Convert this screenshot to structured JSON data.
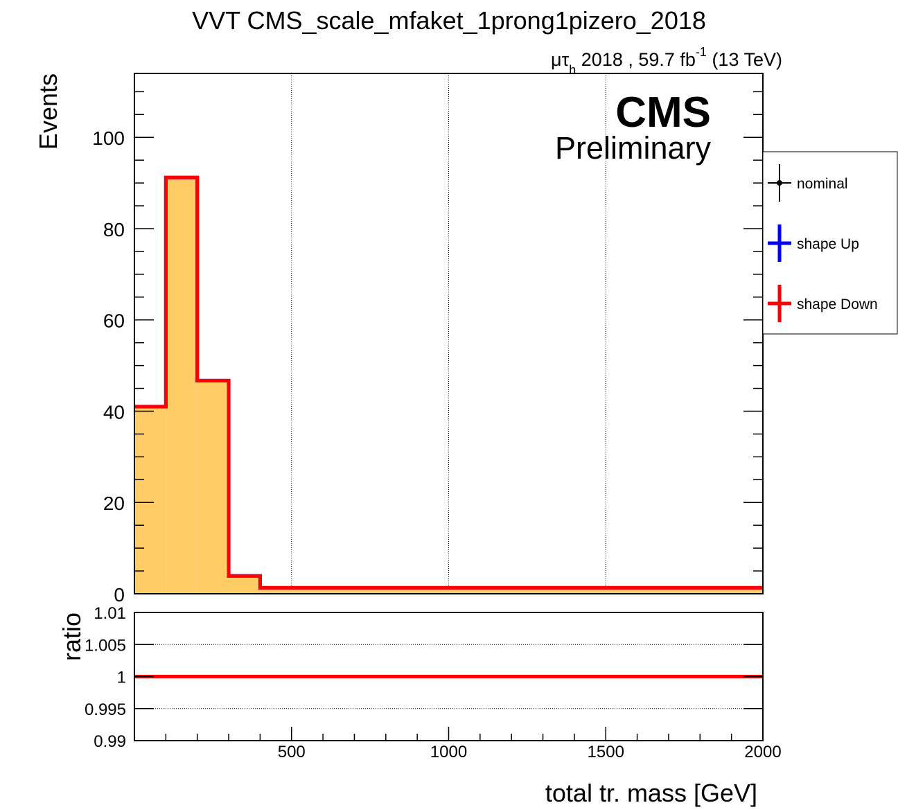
{
  "title": "VVT CMS_scale_mfaket_1prong1pizero_2018",
  "lumi": {
    "channel_mu": "μτ",
    "channel_sub": "h",
    "text_main": " 2018 , 59.7 fb",
    "text_sup": "-1",
    "text_end": " (13 TeV)"
  },
  "cms_label": "CMS",
  "preliminary_label": "Preliminary",
  "legend": {
    "items": [
      {
        "label": "nominal",
        "color": "#000000",
        "marker": "point"
      },
      {
        "label": "shape Up",
        "color": "#0000ff",
        "marker": "cross"
      },
      {
        "label": "shape Down",
        "color": "#ff0000",
        "marker": "cross"
      }
    ]
  },
  "colors": {
    "fill": "#ffcc66",
    "nominal": "#000000",
    "up": "#0000ff",
    "down": "#ff0000"
  },
  "chart_data": [
    {
      "type": "bar",
      "subtype": "histogram",
      "ylabel": "Events",
      "xlim": [
        0,
        2000
      ],
      "ylim": [
        0,
        114
      ],
      "y_ticks": [
        0,
        20,
        40,
        60,
        80,
        100
      ],
      "y_tick_labels": [
        "0",
        "20",
        "40",
        "60",
        "80",
        "100"
      ],
      "grid_x": true,
      "bin_edges": [
        0,
        100,
        200,
        300,
        400,
        2000
      ],
      "series": [
        {
          "name": "nominal",
          "values": [
            41,
            91.2,
            46.7,
            3.9,
            1.3
          ]
        },
        {
          "name": "shape Up",
          "values": [
            41,
            91.2,
            46.7,
            3.9,
            1.3
          ]
        },
        {
          "name": "shape Down",
          "values": [
            41,
            91.2,
            46.7,
            3.9,
            1.3
          ]
        }
      ],
      "legend_position": "right"
    },
    {
      "type": "line",
      "xlabel": "total tr. mass [GeV]",
      "ylabel": "ratio",
      "xlim": [
        0,
        2000
      ],
      "ylim": [
        0.99,
        1.01
      ],
      "x_ticks": [
        500,
        1000,
        1500,
        2000
      ],
      "x_tick_labels": [
        "500",
        "1000",
        "1500",
        "2000"
      ],
      "y_ticks": [
        0.99,
        0.995,
        1,
        1.005,
        1.01
      ],
      "y_tick_labels": [
        "0.99",
        "0.995",
        "1",
        "1.005",
        "1.01"
      ],
      "grid_y": true,
      "series": [
        {
          "name": "shape Down",
          "x": [
            0,
            2000
          ],
          "y": [
            1,
            1
          ]
        }
      ]
    }
  ]
}
